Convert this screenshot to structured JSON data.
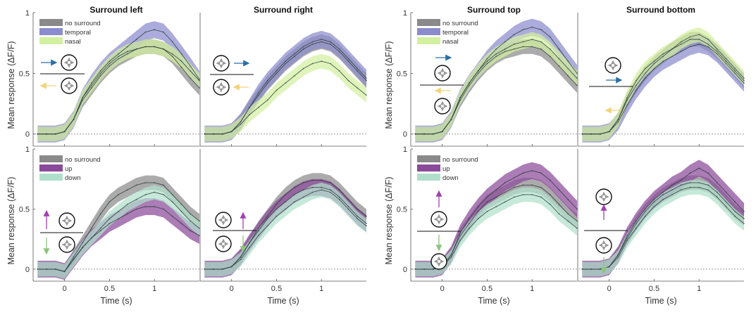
{
  "figure": {
    "ylabel": "Mean response (ΔF/F)",
    "xlabel": "Time (s)",
    "xticks": [
      "0",
      "0.5",
      "1"
    ],
    "yticks": [
      "0",
      "0.5",
      "1"
    ]
  },
  "colors": {
    "no_surround": "#8a8a8a",
    "temporal": "#8a8ccd",
    "nasal": "#d2f0a0",
    "up": "#8a4a9a",
    "down": "#b0e0cc",
    "arrow_blue": "#2a6fa8",
    "arrow_yellow": "#f3d27a",
    "arrow_purple": "#a040b0",
    "arrow_green": "#8cc47a",
    "mean_line": "#2a3a3a"
  },
  "legends": {
    "horizontal": [
      "no surround",
      "temporal",
      "nasal"
    ],
    "vertical": [
      "no surround",
      "up",
      "down"
    ]
  },
  "chart_data": [
    {
      "type": "line",
      "title": "Surround left",
      "xlim": [
        -0.35,
        1.5
      ],
      "ylim": [
        -0.1,
        1.0
      ],
      "grid": false,
      "legend": "top-left",
      "x": [
        -0.3,
        -0.2,
        -0.1,
        0,
        0.1,
        0.2,
        0.3,
        0.4,
        0.5,
        0.6,
        0.7,
        0.8,
        0.9,
        1.0,
        1.1,
        1.2,
        1.3,
        1.4,
        1.5
      ],
      "series": [
        {
          "name": "no surround",
          "values": [
            0.0,
            0.0,
            0.0,
            0.02,
            0.12,
            0.28,
            0.38,
            0.48,
            0.56,
            0.62,
            0.66,
            0.7,
            0.72,
            0.72,
            0.7,
            0.64,
            0.55,
            0.46,
            0.38
          ]
        },
        {
          "name": "temporal",
          "values": [
            0.0,
            0.0,
            0.0,
            0.02,
            0.12,
            0.3,
            0.42,
            0.52,
            0.6,
            0.66,
            0.72,
            0.78,
            0.84,
            0.86,
            0.84,
            0.76,
            0.66,
            0.56,
            0.45
          ]
        },
        {
          "name": "nasal",
          "values": [
            0.0,
            0.0,
            0.0,
            0.02,
            0.12,
            0.3,
            0.4,
            0.5,
            0.58,
            0.64,
            0.68,
            0.7,
            0.72,
            0.72,
            0.7,
            0.66,
            0.6,
            0.52,
            0.44
          ]
        }
      ]
    },
    {
      "type": "line",
      "title": "Surround right",
      "xlim": [
        -0.35,
        1.5
      ],
      "ylim": [
        -0.1,
        1.0
      ],
      "grid": false,
      "x": [
        -0.3,
        -0.2,
        -0.1,
        0,
        0.1,
        0.2,
        0.3,
        0.4,
        0.5,
        0.6,
        0.7,
        0.8,
        0.9,
        1.0,
        1.1,
        1.2,
        1.3,
        1.4,
        1.5
      ],
      "series": [
        {
          "name": "no surround",
          "values": [
            0.0,
            0.0,
            0.0,
            0.02,
            0.1,
            0.22,
            0.32,
            0.42,
            0.5,
            0.58,
            0.64,
            0.7,
            0.74,
            0.76,
            0.74,
            0.68,
            0.6,
            0.52,
            0.44
          ]
        },
        {
          "name": "temporal",
          "values": [
            0.0,
            0.0,
            0.0,
            0.02,
            0.1,
            0.22,
            0.34,
            0.44,
            0.52,
            0.6,
            0.66,
            0.72,
            0.76,
            0.78,
            0.76,
            0.7,
            0.62,
            0.54,
            0.46
          ]
        },
        {
          "name": "nasal",
          "values": [
            0.0,
            0.0,
            0.0,
            0.02,
            0.08,
            0.16,
            0.22,
            0.28,
            0.36,
            0.42,
            0.48,
            0.54,
            0.58,
            0.6,
            0.58,
            0.52,
            0.44,
            0.38,
            0.32
          ]
        }
      ]
    },
    {
      "type": "line",
      "title": "Surround top",
      "xlim": [
        -0.35,
        1.5
      ],
      "ylim": [
        -0.1,
        1.0
      ],
      "grid": false,
      "legend": "top-left",
      "x": [
        -0.3,
        -0.2,
        -0.1,
        0,
        0.1,
        0.2,
        0.3,
        0.4,
        0.5,
        0.6,
        0.7,
        0.8,
        0.9,
        1.0,
        1.1,
        1.2,
        1.3,
        1.4,
        1.5
      ],
      "series": [
        {
          "name": "no surround",
          "values": [
            0.0,
            0.0,
            0.0,
            0.02,
            0.12,
            0.28,
            0.4,
            0.5,
            0.58,
            0.64,
            0.68,
            0.7,
            0.72,
            0.72,
            0.7,
            0.64,
            0.56,
            0.48,
            0.4
          ]
        },
        {
          "name": "temporal",
          "values": [
            0.0,
            0.0,
            0.0,
            0.02,
            0.12,
            0.3,
            0.42,
            0.52,
            0.62,
            0.7,
            0.76,
            0.82,
            0.86,
            0.88,
            0.86,
            0.8,
            0.7,
            0.6,
            0.5
          ]
        },
        {
          "name": "nasal",
          "values": [
            0.0,
            0.0,
            0.0,
            0.02,
            0.12,
            0.3,
            0.42,
            0.52,
            0.6,
            0.66,
            0.7,
            0.74,
            0.76,
            0.78,
            0.76,
            0.7,
            0.62,
            0.54,
            0.46
          ]
        }
      ]
    },
    {
      "type": "line",
      "title": "Surround bottom",
      "xlim": [
        -0.35,
        1.5
      ],
      "ylim": [
        -0.1,
        1.0
      ],
      "grid": false,
      "x": [
        -0.3,
        -0.2,
        -0.1,
        0,
        0.1,
        0.2,
        0.3,
        0.4,
        0.5,
        0.6,
        0.7,
        0.8,
        0.9,
        1.0,
        1.1,
        1.2,
        1.3,
        1.4,
        1.5
      ],
      "series": [
        {
          "name": "no surround",
          "values": [
            0.0,
            0.0,
            0.0,
            0.02,
            0.12,
            0.28,
            0.4,
            0.5,
            0.58,
            0.64,
            0.7,
            0.74,
            0.78,
            0.78,
            0.74,
            0.68,
            0.6,
            0.52,
            0.44
          ]
        },
        {
          "name": "temporal",
          "values": [
            0.0,
            0.0,
            0.0,
            0.02,
            0.1,
            0.24,
            0.36,
            0.46,
            0.54,
            0.6,
            0.64,
            0.68,
            0.72,
            0.74,
            0.72,
            0.66,
            0.58,
            0.5,
            0.42
          ]
        },
        {
          "name": "nasal",
          "values": [
            0.0,
            0.0,
            0.0,
            0.02,
            0.12,
            0.3,
            0.44,
            0.54,
            0.6,
            0.66,
            0.7,
            0.76,
            0.8,
            0.82,
            0.78,
            0.7,
            0.62,
            0.54,
            0.46
          ]
        }
      ]
    },
    {
      "type": "line",
      "xlim": [
        -0.35,
        1.5
      ],
      "ylim": [
        -0.1,
        1.0
      ],
      "grid": false,
      "legend": "top-left",
      "x": [
        -0.3,
        -0.2,
        -0.1,
        0,
        0.1,
        0.2,
        0.3,
        0.4,
        0.5,
        0.6,
        0.7,
        0.8,
        0.9,
        1.0,
        1.1,
        1.2,
        1.3,
        1.4,
        1.5
      ],
      "series": [
        {
          "name": "no surround",
          "values": [
            0.0,
            0.0,
            0.0,
            -0.02,
            0.1,
            0.22,
            0.34,
            0.46,
            0.56,
            0.62,
            0.66,
            0.7,
            0.72,
            0.72,
            0.7,
            0.62,
            0.54,
            0.46,
            0.4
          ]
        },
        {
          "name": "up",
          "values": [
            0.0,
            0.0,
            0.0,
            -0.02,
            0.08,
            0.18,
            0.26,
            0.32,
            0.38,
            0.42,
            0.46,
            0.5,
            0.52,
            0.52,
            0.5,
            0.44,
            0.38,
            0.32,
            0.28
          ]
        },
        {
          "name": "down",
          "values": [
            0.0,
            0.0,
            0.0,
            -0.02,
            0.08,
            0.18,
            0.26,
            0.34,
            0.42,
            0.48,
            0.54,
            0.58,
            0.62,
            0.64,
            0.62,
            0.56,
            0.48,
            0.4,
            0.34
          ]
        }
      ]
    },
    {
      "type": "line",
      "xlim": [
        -0.35,
        1.5
      ],
      "ylim": [
        -0.1,
        1.0
      ],
      "grid": false,
      "x": [
        -0.3,
        -0.2,
        -0.1,
        0,
        0.1,
        0.2,
        0.3,
        0.4,
        0.5,
        0.6,
        0.7,
        0.8,
        0.9,
        1.0,
        1.1,
        1.2,
        1.3,
        1.4,
        1.5
      ],
      "series": [
        {
          "name": "no surround",
          "values": [
            0.0,
            0.0,
            0.0,
            0.02,
            0.1,
            0.22,
            0.34,
            0.44,
            0.54,
            0.62,
            0.68,
            0.72,
            0.74,
            0.74,
            0.72,
            0.66,
            0.58,
            0.5,
            0.44
          ]
        },
        {
          "name": "up",
          "values": [
            0.0,
            0.0,
            0.0,
            0.02,
            0.1,
            0.22,
            0.32,
            0.42,
            0.5,
            0.56,
            0.62,
            0.66,
            0.68,
            0.68,
            0.66,
            0.6,
            0.52,
            0.44,
            0.38
          ]
        },
        {
          "name": "down",
          "values": [
            0.0,
            0.0,
            0.0,
            0.02,
            0.08,
            0.18,
            0.28,
            0.36,
            0.44,
            0.5,
            0.56,
            0.6,
            0.64,
            0.66,
            0.64,
            0.58,
            0.5,
            0.42,
            0.36
          ]
        }
      ]
    },
    {
      "type": "line",
      "xlim": [
        -0.35,
        1.5
      ],
      "ylim": [
        -0.1,
        1.0
      ],
      "grid": false,
      "legend": "top-left",
      "x": [
        -0.3,
        -0.2,
        -0.1,
        0,
        0.1,
        0.2,
        0.3,
        0.4,
        0.5,
        0.6,
        0.7,
        0.8,
        0.9,
        1.0,
        1.1,
        1.2,
        1.3,
        1.4,
        1.5
      ],
      "series": [
        {
          "name": "no surround",
          "values": [
            0.0,
            0.0,
            0.0,
            0.02,
            0.12,
            0.28,
            0.38,
            0.48,
            0.56,
            0.6,
            0.64,
            0.68,
            0.7,
            0.7,
            0.68,
            0.62,
            0.54,
            0.46,
            0.4
          ]
        },
        {
          "name": "up",
          "values": [
            0.0,
            0.0,
            0.0,
            0.02,
            0.12,
            0.3,
            0.42,
            0.52,
            0.6,
            0.66,
            0.72,
            0.76,
            0.8,
            0.82,
            0.8,
            0.74,
            0.66,
            0.58,
            0.5
          ]
        },
        {
          "name": "down",
          "values": [
            0.0,
            0.0,
            0.0,
            0.02,
            0.1,
            0.24,
            0.34,
            0.42,
            0.48,
            0.52,
            0.56,
            0.6,
            0.62,
            0.62,
            0.6,
            0.54,
            0.46,
            0.4,
            0.34
          ]
        }
      ]
    },
    {
      "type": "line",
      "xlim": [
        -0.35,
        1.5
      ],
      "ylim": [
        -0.1,
        1.0
      ],
      "grid": false,
      "x": [
        -0.3,
        -0.2,
        -0.1,
        0,
        0.1,
        0.2,
        0.3,
        0.4,
        0.5,
        0.6,
        0.7,
        0.8,
        0.9,
        1.0,
        1.1,
        1.2,
        1.3,
        1.4,
        1.5
      ],
      "series": [
        {
          "name": "no surround",
          "values": [
            0.0,
            0.0,
            0.0,
            0.02,
            0.12,
            0.26,
            0.38,
            0.48,
            0.56,
            0.62,
            0.66,
            0.7,
            0.72,
            0.72,
            0.7,
            0.64,
            0.56,
            0.48,
            0.42
          ]
        },
        {
          "name": "up",
          "values": [
            0.0,
            0.0,
            0.0,
            0.02,
            0.12,
            0.28,
            0.4,
            0.5,
            0.58,
            0.64,
            0.7,
            0.74,
            0.8,
            0.84,
            0.8,
            0.72,
            0.64,
            0.56,
            0.48
          ]
        },
        {
          "name": "down",
          "values": [
            0.0,
            0.0,
            0.0,
            0.02,
            0.1,
            0.24,
            0.34,
            0.44,
            0.52,
            0.58,
            0.62,
            0.66,
            0.68,
            0.68,
            0.66,
            0.6,
            0.52,
            0.44,
            0.38
          ]
        }
      ]
    }
  ]
}
